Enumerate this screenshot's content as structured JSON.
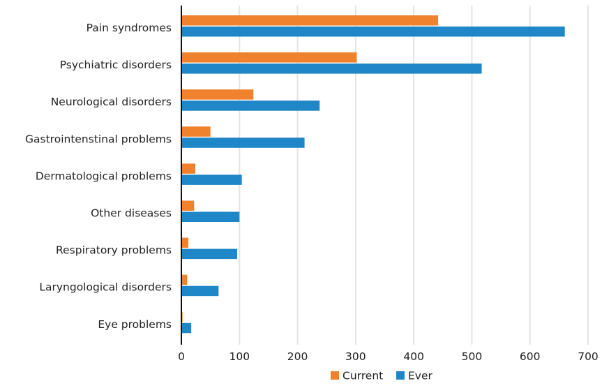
{
  "chart_data": {
    "type": "bar",
    "orientation": "horizontal",
    "title": "",
    "xlabel": "",
    "ylabel": "",
    "categories": [
      "Pain syndromes",
      "Psychiatric disorders",
      "Neurological disorders",
      "Gastrointenstinal problems",
      "Dermatological problems",
      "Other diseases",
      "Respiratory problems",
      "Laryngological disorders",
      "Eye problems"
    ],
    "series": [
      {
        "name": "Current",
        "color": "#f0822d",
        "values": [
          442,
          302,
          124,
          50,
          24,
          22,
          12,
          10,
          2
        ]
      },
      {
        "name": "Ever",
        "color": "#1f86c8",
        "values": [
          660,
          517,
          238,
          212,
          104,
          100,
          96,
          64,
          17
        ]
      }
    ],
    "xlim": [
      0,
      700
    ],
    "xticks": [
      0,
      100,
      200,
      300,
      400,
      500,
      600,
      700
    ],
    "grid": "vertical",
    "legend_position": "bottom-right"
  }
}
